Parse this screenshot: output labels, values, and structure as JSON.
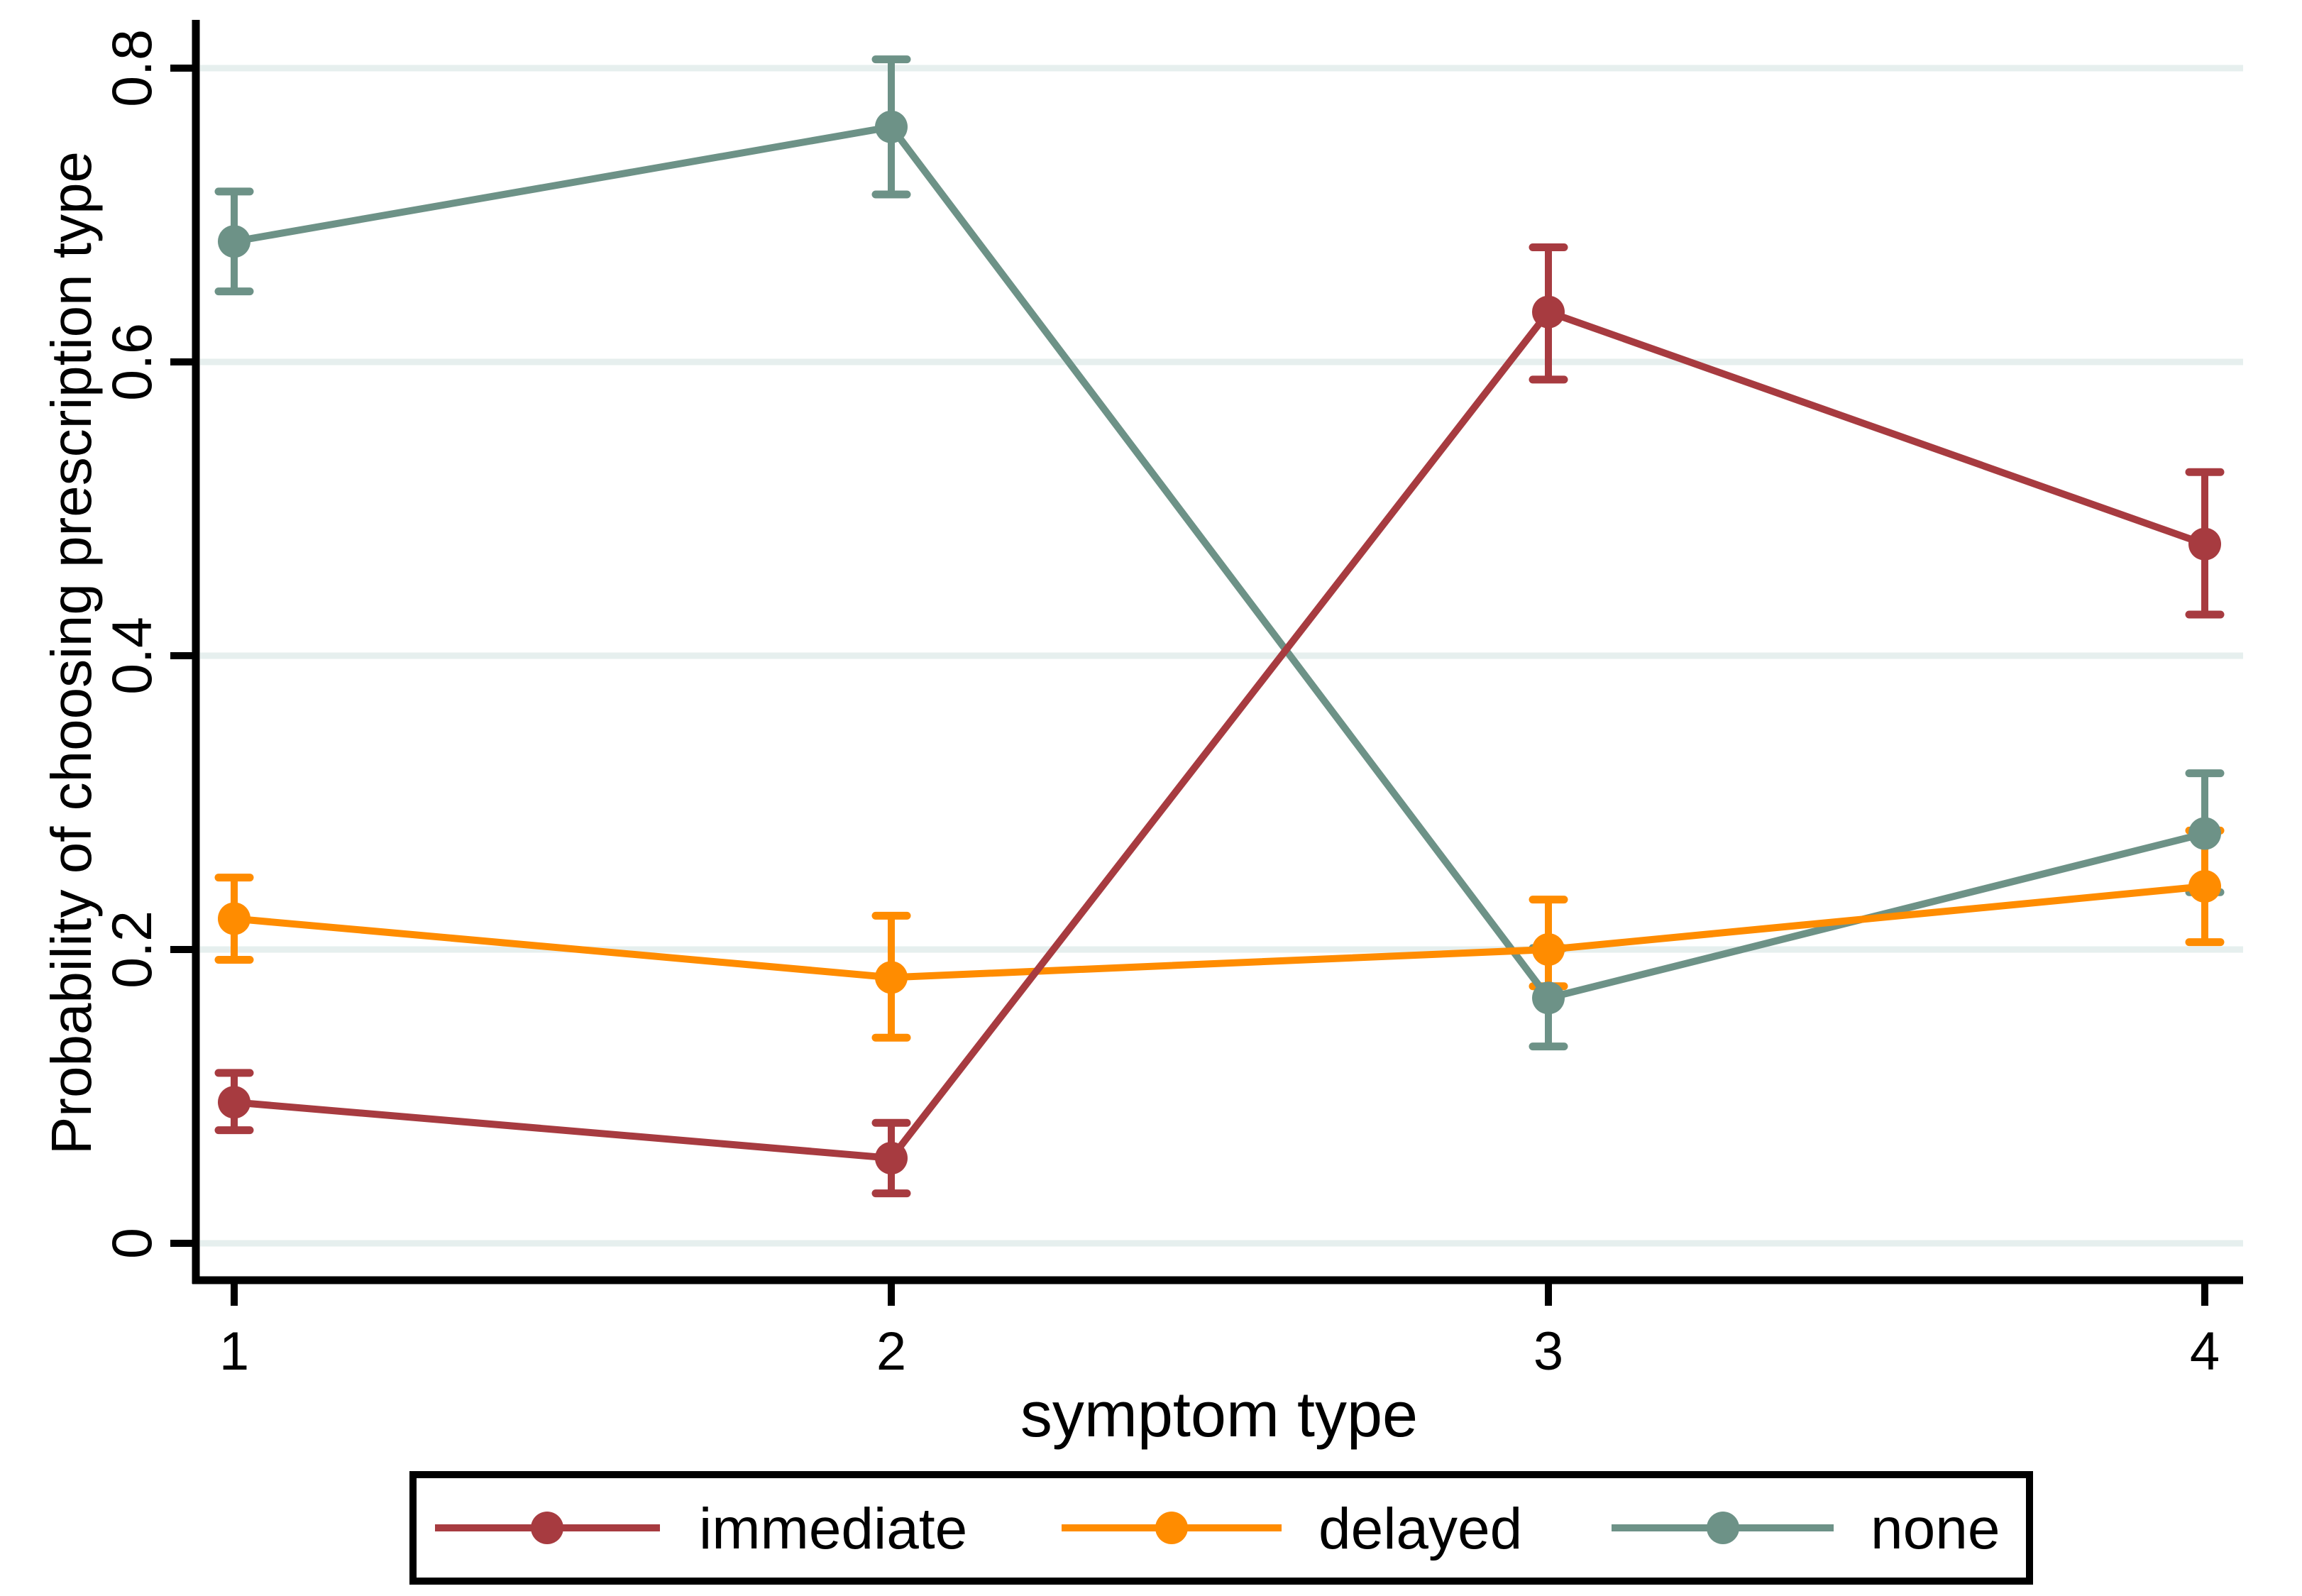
{
  "page": {
    "background": "#ffffff"
  },
  "chart_data": {
    "type": "line",
    "title": "",
    "xlabel": "symptom type",
    "ylabel": "Probability of choosing prescription type",
    "categories": [
      1,
      2,
      3,
      4
    ],
    "x_tick_labels": [
      "1",
      "2",
      "3",
      "4"
    ],
    "y_ticks": [
      0,
      0.2,
      0.4,
      0.6,
      0.8
    ],
    "y_tick_labels": [
      "0",
      "0.2",
      "0.4",
      "0.6",
      "0.8"
    ],
    "ylim": [
      0,
      0.86
    ],
    "grid": true,
    "gridline_color": "#e6efee",
    "axis_color": "#000000",
    "legend_position": "bottom-center",
    "error_bars": true,
    "series": [
      {
        "name": "immediate",
        "color": "#a73b40",
        "values": [
          0.096,
          0.058,
          0.634,
          0.476
        ],
        "ci_low": [
          0.077,
          0.034,
          0.588,
          0.428
        ],
        "ci_high": [
          0.116,
          0.082,
          0.678,
          0.525
        ]
      },
      {
        "name": "delayed",
        "color": "#ff8c00",
        "values": [
          0.221,
          0.181,
          0.2,
          0.243
        ],
        "ci_low": [
          0.193,
          0.14,
          0.175,
          0.205
        ],
        "ci_high": [
          0.249,
          0.223,
          0.234,
          0.281
        ]
      },
      {
        "name": "none",
        "color": "#6d9287",
        "values": [
          0.682,
          0.76,
          0.167,
          0.279
        ],
        "ci_low": [
          0.648,
          0.714,
          0.134,
          0.239
        ],
        "ci_high": [
          0.716,
          0.806,
          0.201,
          0.32
        ]
      }
    ]
  }
}
